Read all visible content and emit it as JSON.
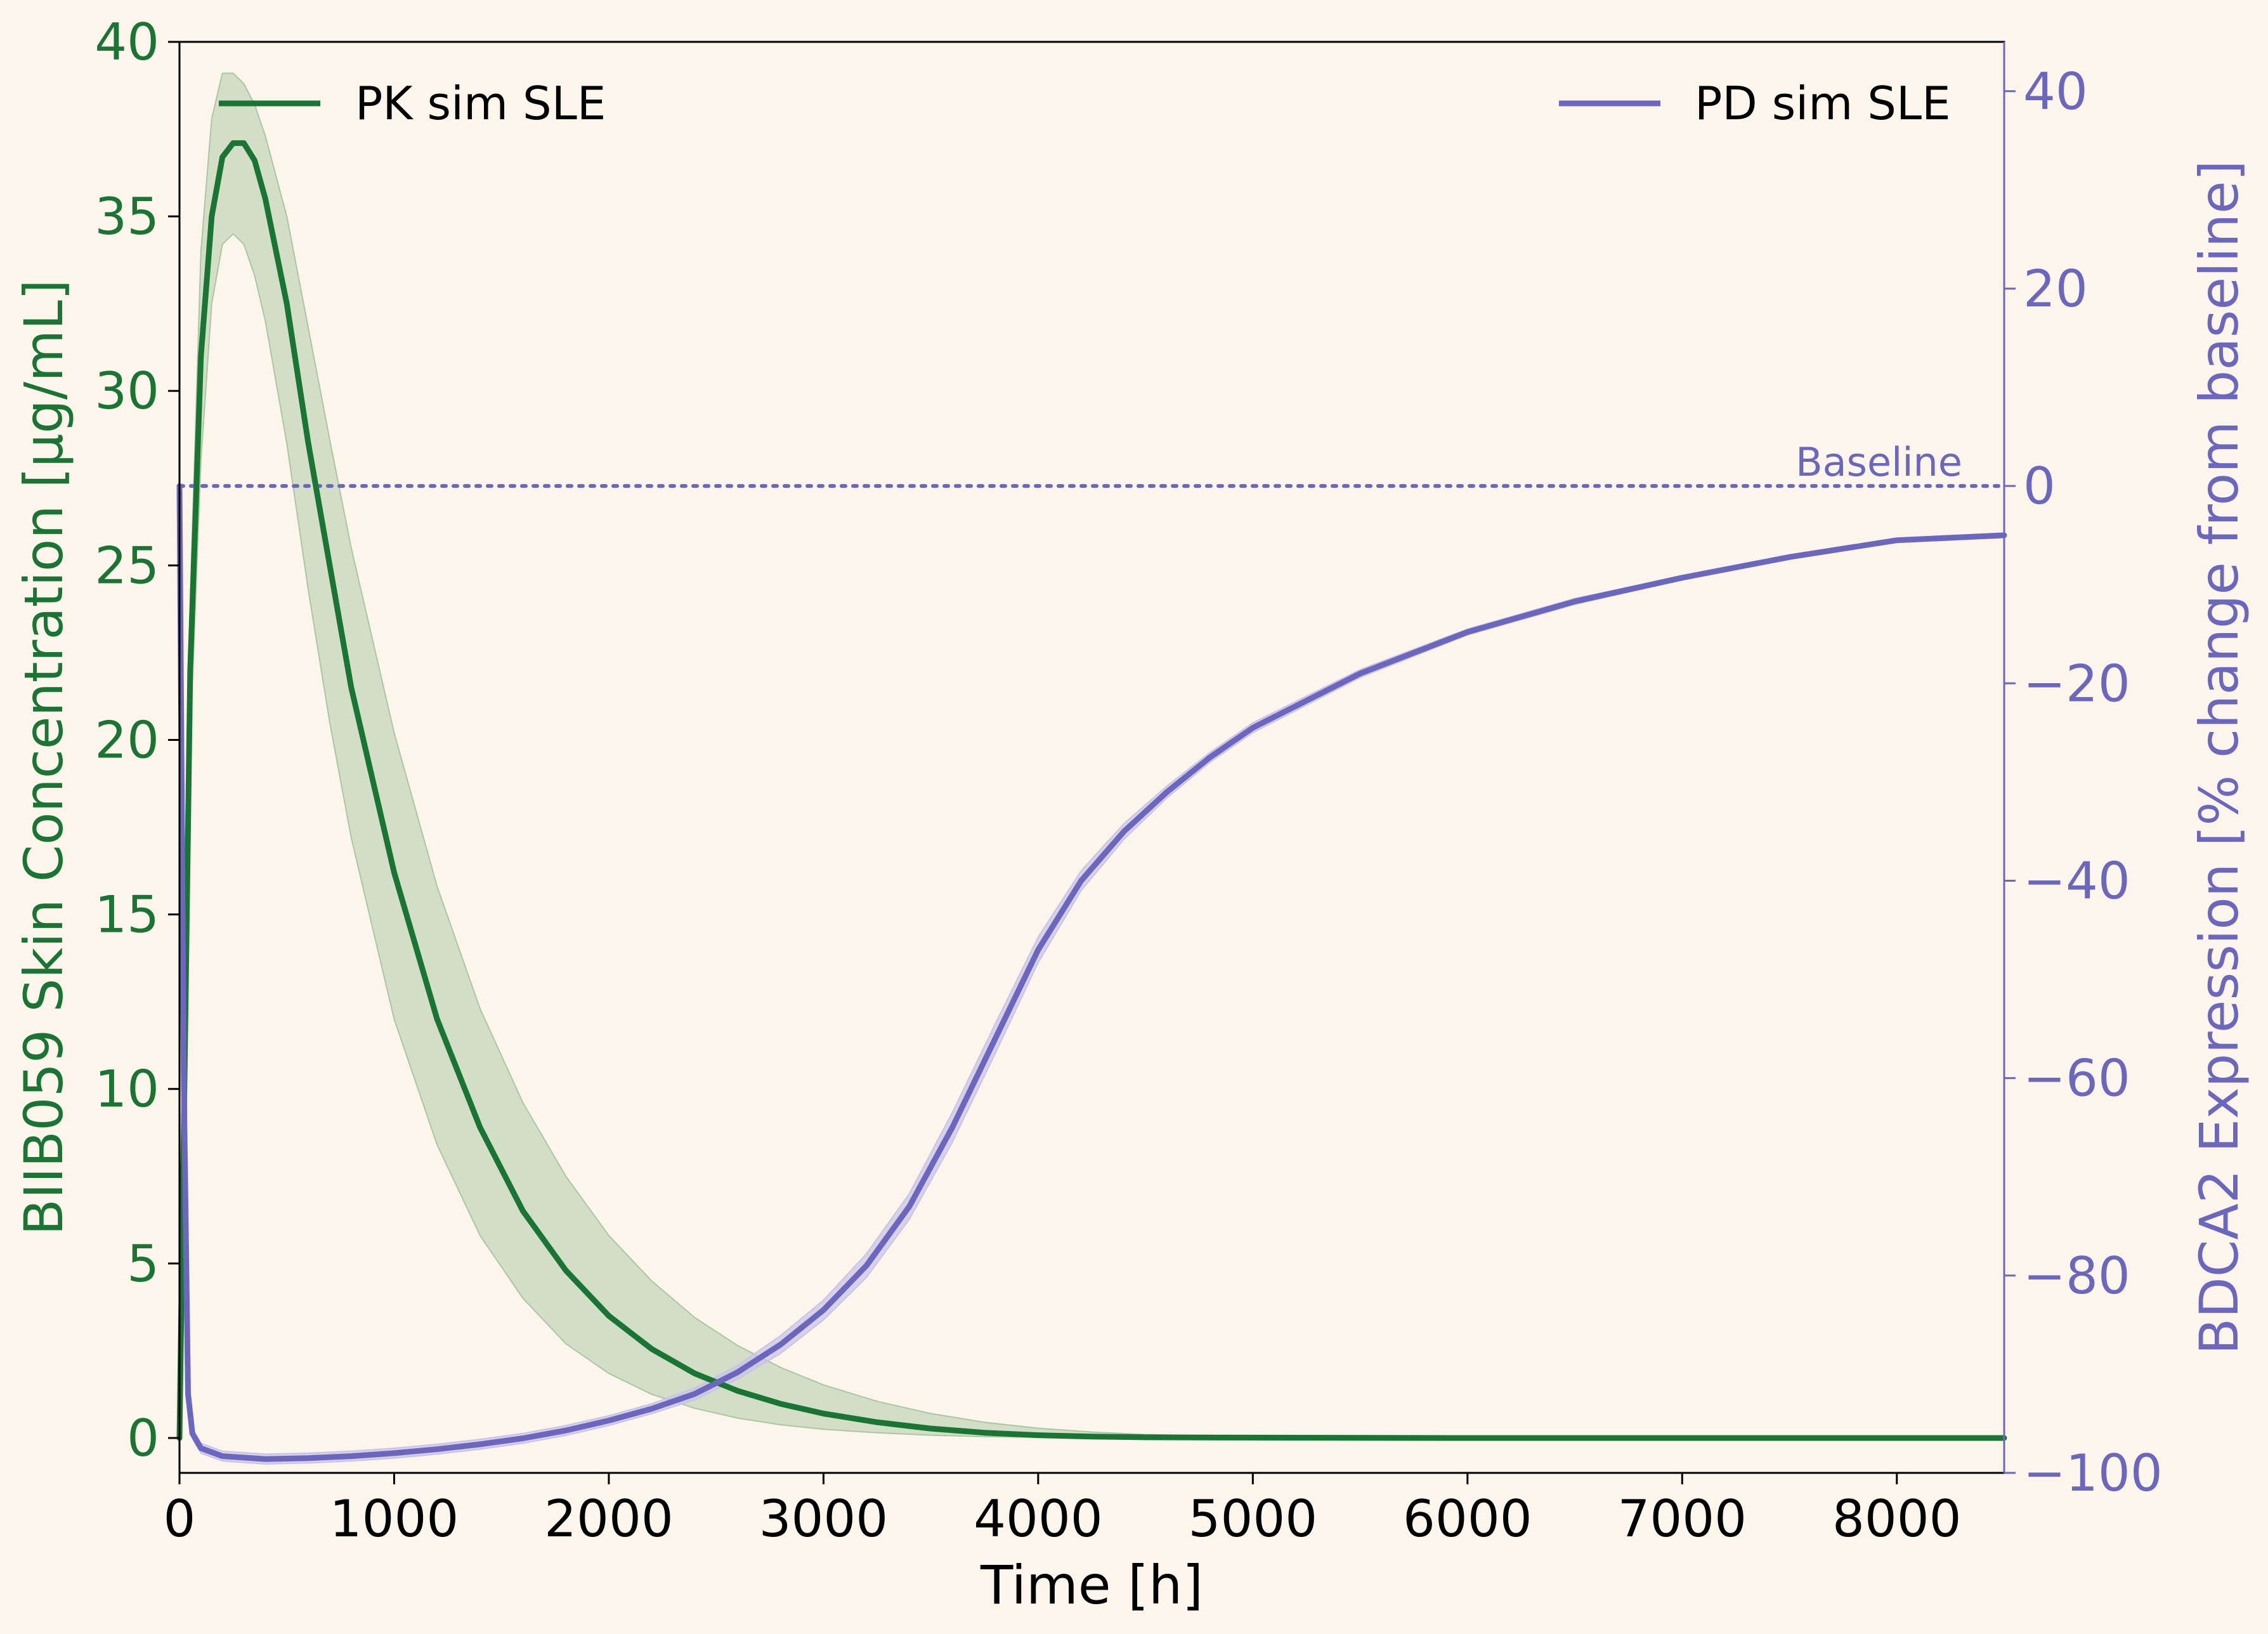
{
  "chart_data": {
    "type": "line",
    "xlabel": "Time [h]",
    "ylabel_left": "BIIB059 Skin Concentration [μg/mL]",
    "ylabel_right": "BDCA2 Expression [% change from baseline]",
    "xlim": [
      0,
      8500
    ],
    "ylim_left": [
      -1,
      40
    ],
    "ylim_right": [
      -100,
      45
    ],
    "x_ticks": [
      0,
      1000,
      2000,
      3000,
      4000,
      5000,
      6000,
      7000,
      8000
    ],
    "x_tick_labels": [
      "0",
      "1000",
      "2000",
      "3000",
      "4000",
      "5000",
      "6000",
      "7000",
      "8000"
    ],
    "y_left_ticks": [
      0,
      5,
      10,
      15,
      20,
      25,
      30,
      35,
      40
    ],
    "y_left_tick_labels": [
      "0",
      "5",
      "10",
      "15",
      "20",
      "25",
      "30",
      "35",
      "40"
    ],
    "y_right_ticks": [
      -100,
      -80,
      -60,
      -40,
      -20,
      0,
      20,
      40
    ],
    "y_right_tick_labels": [
      "−100",
      "−80",
      "−60",
      "−40",
      "−20",
      "0",
      "20",
      "40"
    ],
    "grid": false,
    "colors": {
      "pk": "#1a7535",
      "pk_band": "#aac7a2",
      "pd": "#6c67be",
      "pd_band": "#c9c3e8",
      "background": "#fcf5ec"
    },
    "series": [
      {
        "name": "PK sim SLE",
        "axis": "left",
        "legend_position": "top-left",
        "x": [
          0,
          25,
          50,
          100,
          150,
          200,
          250,
          300,
          350,
          400,
          500,
          600,
          700,
          800,
          1000,
          1200,
          1400,
          1600,
          1800,
          2000,
          2200,
          2400,
          2600,
          2800,
          3000,
          3250,
          3500,
          3750,
          4000,
          4250,
          4500,
          5000,
          6000,
          7000,
          8000,
          8500
        ],
        "values": [
          0,
          11,
          22,
          31,
          35,
          36.7,
          37.1,
          37.1,
          36.6,
          35.5,
          32.5,
          28.5,
          25,
          21.5,
          16.2,
          12,
          8.9,
          6.5,
          4.8,
          3.5,
          2.55,
          1.85,
          1.35,
          0.98,
          0.7,
          0.45,
          0.27,
          0.15,
          0.08,
          0.04,
          0.02,
          0.01,
          0,
          0,
          0,
          0
        ],
        "lower": [
          0,
          10,
          20,
          28,
          32.5,
          34.2,
          34.5,
          34.2,
          33.3,
          32,
          28.5,
          24.3,
          20.5,
          17.2,
          12,
          8.4,
          5.8,
          4,
          2.7,
          1.85,
          1.25,
          0.85,
          0.57,
          0.38,
          0.25,
          0.15,
          0.08,
          0.04,
          0.02,
          0.01,
          0,
          0,
          0,
          0,
          0,
          0
        ],
        "upper": [
          0,
          12,
          24,
          34,
          37.8,
          39.1,
          39.1,
          38.8,
          38.2,
          37.3,
          35,
          31.8,
          28.6,
          25.5,
          20.2,
          15.8,
          12.3,
          9.6,
          7.5,
          5.8,
          4.5,
          3.45,
          2.65,
          2.02,
          1.52,
          1.05,
          0.7,
          0.45,
          0.28,
          0.17,
          0.1,
          0.03,
          0,
          0,
          0,
          0
        ]
      },
      {
        "name": "PD sim SLE",
        "axis": "right",
        "legend_position": "top-right",
        "x": [
          0,
          20,
          40,
          60,
          100,
          200,
          400,
          600,
          800,
          1000,
          1200,
          1400,
          1600,
          1800,
          2000,
          2200,
          2400,
          2600,
          2800,
          3000,
          3200,
          3400,
          3600,
          3800,
          4000,
          4200,
          4400,
          4600,
          4800,
          5000,
          5500,
          6000,
          6500,
          7000,
          7500,
          8000,
          8500
        ],
        "values": [
          0,
          -60,
          -92,
          -96,
          -97.5,
          -98.3,
          -98.6,
          -98.5,
          -98.3,
          -98,
          -97.6,
          -97.1,
          -96.5,
          -95.7,
          -94.7,
          -93.5,
          -92,
          -89.8,
          -87,
          -83.5,
          -79,
          -73,
          -65,
          -56,
          -47,
          -40,
          -35,
          -31,
          -27.5,
          -24.5,
          -19,
          -14.8,
          -11.7,
          -9.3,
          -7.2,
          -5.5,
          -5
        ],
        "lower": [
          0,
          -61,
          -93,
          -96.5,
          -98,
          -98.8,
          -99.1,
          -99,
          -98.8,
          -98.5,
          -98.1,
          -97.6,
          -97,
          -96.2,
          -95.2,
          -94,
          -92.6,
          -90.5,
          -87.9,
          -84.5,
          -80.2,
          -74.3,
          -66.5,
          -57.5,
          -48.3,
          -41,
          -35.8,
          -31.6,
          -28,
          -25,
          -19.4,
          -15.1,
          -12,
          -9.5,
          -7.4,
          -5.7,
          -5.2
        ],
        "upper": [
          0,
          -59,
          -91,
          -95.5,
          -97,
          -97.8,
          -98.1,
          -98,
          -97.8,
          -97.5,
          -97.1,
          -96.6,
          -96,
          -95.2,
          -94.2,
          -93,
          -91.4,
          -89.1,
          -86.1,
          -82.5,
          -77.8,
          -71.7,
          -63.5,
          -54.5,
          -45.7,
          -39,
          -34.2,
          -30.4,
          -27,
          -24,
          -18.6,
          -14.5,
          -11.4,
          -9.1,
          -7,
          -5.3,
          -4.8
        ]
      }
    ],
    "annotations": [
      {
        "type": "hline",
        "axis": "right",
        "y": 0,
        "style": "dotted",
        "label": "Baseline"
      }
    ]
  }
}
